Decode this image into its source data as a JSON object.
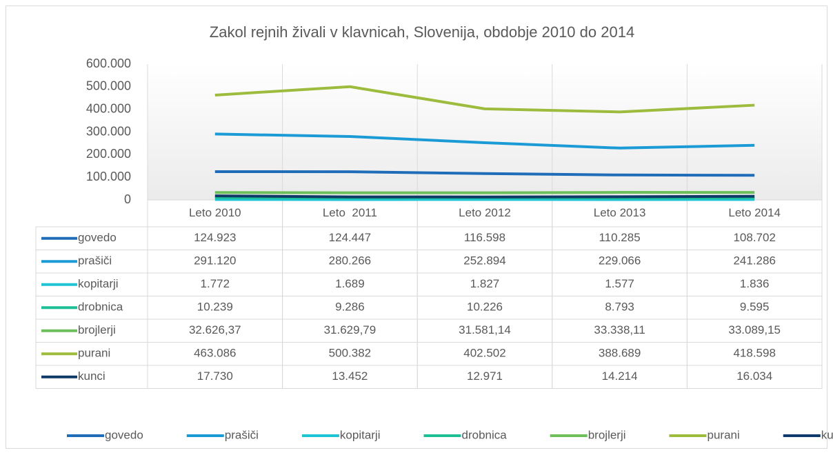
{
  "chart_data": {
    "type": "line",
    "title": "Zakol rejnih živali v klavnicah, Slovenija, obdobje 2010 do 2014",
    "categories": [
      "Leto 2010",
      "Leto  2011",
      "Leto 2012",
      "Leto 2013",
      "Leto 2014"
    ],
    "ylim": [
      0,
      600000
    ],
    "yticks": [
      0,
      {
        "value": 100000,
        "label": "100.000"
      },
      {
        "value": 200000,
        "label": "200.000"
      },
      {
        "value": 300000,
        "label": "300.000"
      },
      {
        "value": 400000,
        "label": "400.000"
      },
      {
        "value": 500000,
        "label": "500.000"
      },
      {
        "value": 600000,
        "label": "600.000"
      }
    ],
    "grid": true,
    "legend": "bottom",
    "series": [
      {
        "name": "govedo",
        "color": "#1f6cb8",
        "values": [
          124923,
          124447,
          116598,
          110285,
          108702
        ],
        "value_labels": [
          "124.923",
          "124.447",
          "116.598",
          "110.285",
          "108.702"
        ]
      },
      {
        "name": "prašiči",
        "color": "#1b9bd6",
        "values": [
          291120,
          280266,
          252894,
          229066,
          241286
        ],
        "value_labels": [
          "291.120",
          "280.266",
          "252.894",
          "229.066",
          "241.286"
        ]
      },
      {
        "name": "kopitarji",
        "color": "#1ec4d4",
        "values": [
          1772,
          1689,
          1827,
          1577,
          1836
        ],
        "value_labels": [
          "1.772",
          "1.689",
          "1.827",
          "1.577",
          "1.836"
        ]
      },
      {
        "name": "drobnica",
        "color": "#1dbf97",
        "values": [
          10239,
          9286,
          10226,
          8793,
          9595
        ],
        "value_labels": [
          "10.239",
          "9.286",
          "10.226",
          "8.793",
          "9.595"
        ]
      },
      {
        "name": "brojlerji",
        "color": "#6cbf5b",
        "values": [
          32626.37,
          31629.79,
          31581.14,
          33338.11,
          33089.15
        ],
        "value_labels": [
          "32.626,37",
          "31.629,79",
          "31.581,14",
          "33.338,11",
          "33.089,15"
        ]
      },
      {
        "name": "purani",
        "color": "#9dbb3c",
        "values": [
          463086,
          500382,
          402502,
          388689,
          418598
        ],
        "value_labels": [
          "463.086",
          "500.382",
          "402.502",
          "388.689",
          "418.598"
        ]
      },
      {
        "name": "kunci",
        "color": "#0f3a68",
        "values": [
          17730,
          13452,
          12971,
          14214,
          16034
        ],
        "value_labels": [
          "17.730",
          "13.452",
          "12.971",
          "14.214",
          "16.034"
        ]
      }
    ]
  }
}
